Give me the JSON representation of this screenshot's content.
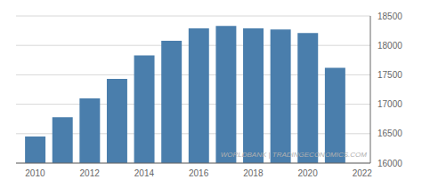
{
  "chart_data": {
    "type": "bar",
    "x": [
      2010,
      2011,
      2012,
      2013,
      2014,
      2015,
      2016,
      2017,
      2018,
      2019,
      2020,
      2021
    ],
    "values": [
      16450,
      16780,
      17100,
      17430,
      17830,
      18080,
      18290,
      18330,
      18290,
      18270,
      18210,
      17620
    ],
    "color": "#4a7eac",
    "xlim": [
      2009.3,
      2022.3
    ],
    "xticks": [
      2010,
      2012,
      2014,
      2016,
      2018,
      2020,
      2022
    ],
    "ylim": [
      16000,
      18500
    ],
    "yticks": [
      16000,
      16500,
      17000,
      17500,
      18000,
      18500
    ],
    "grid": true,
    "annotations": [
      "WORLDBANK | TRADINGECONOMICS.COM"
    ]
  }
}
